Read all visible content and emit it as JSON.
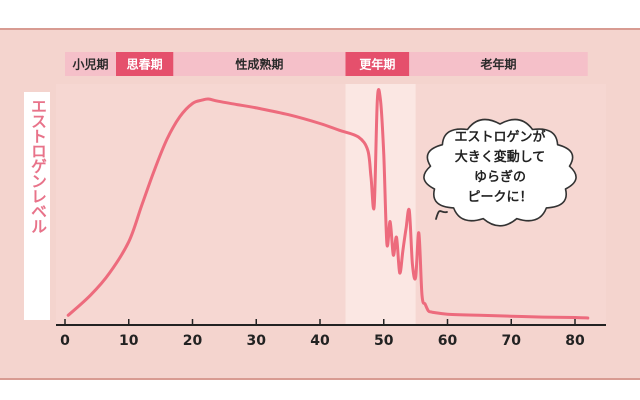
{
  "chart_data": {
    "type": "line",
    "ylabel": "エストロゲンレベル",
    "xlabel": "",
    "xlim": [
      0,
      82
    ],
    "x_ticks": [
      0,
      10,
      20,
      30,
      40,
      50,
      60,
      70,
      80
    ],
    "ylim": [
      0,
      100
    ],
    "grid": false,
    "highlight_range": [
      44,
      55
    ],
    "stages": [
      {
        "label": "小児期",
        "start": 0,
        "end": 8,
        "highlight": false
      },
      {
        "label": "思春期",
        "start": 8,
        "end": 17,
        "highlight": true
      },
      {
        "label": "性成熟期",
        "start": 17,
        "end": 44,
        "highlight": false
      },
      {
        "label": "更年期",
        "start": 44,
        "end": 54,
        "highlight": true
      },
      {
        "label": "老年期",
        "start": 54,
        "end": 82,
        "highlight": false
      }
    ],
    "annotation": {
      "lines": [
        "エストロゲンが",
        "大きく変動して",
        "ゆらぎの",
        "ピークに！"
      ]
    },
    "series": [
      {
        "x": [
          0.5,
          4,
          7,
          10,
          12,
          14,
          16,
          18,
          20,
          21.5,
          22.5,
          24,
          27,
          30,
          35,
          40,
          43,
          46,
          47.5,
          48,
          48.5,
          49,
          49.5,
          50,
          50.5,
          51,
          51.5,
          52,
          52.5,
          53,
          53.5,
          54,
          54.5,
          55,
          55.5,
          56,
          56.5,
          57,
          57.5,
          58,
          60,
          65,
          70,
          75,
          80,
          82
        ],
        "values": [
          3,
          12,
          22,
          36,
          52,
          68,
          82,
          92,
          98,
          99.5,
          100,
          99,
          97.5,
          96,
          93,
          89,
          86,
          83,
          77,
          65,
          52,
          100,
          99,
          75,
          35,
          45,
          30,
          38,
          22,
          32,
          42,
          50,
          26,
          20,
          40,
          12,
          8,
          5,
          4.5,
          4.2,
          3.5,
          3,
          2.6,
          2.2,
          2,
          1.8
        ],
        "color": "#ed6b7d"
      }
    ]
  }
}
